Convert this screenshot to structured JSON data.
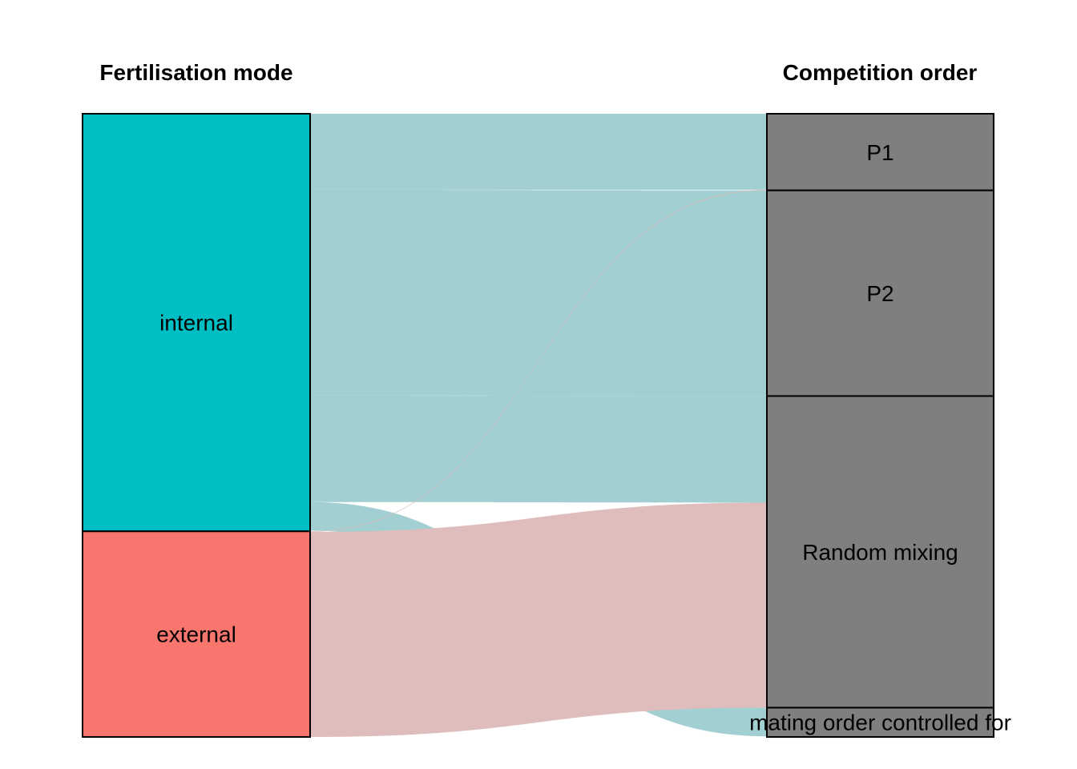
{
  "chart_data": {
    "type": "alluvial",
    "axes": [
      {
        "title": "Fertilisation mode",
        "strata": [
          {
            "label": "internal",
            "value": 67,
            "color": "#00BFC4"
          },
          {
            "label": "external",
            "value": 33,
            "color": "#F8766D"
          }
        ]
      },
      {
        "title": "Competition order",
        "strata": [
          {
            "label": "P1",
            "value": 12.3,
            "color": "#7F7F7F"
          },
          {
            "label": "P2",
            "value": 33,
            "color": "#7F7F7F"
          },
          {
            "label": "Random mixing",
            "value": 50,
            "color": "#7F7F7F"
          },
          {
            "label": "mating order controlled for",
            "value": 4.7,
            "color": "#7F7F7F"
          }
        ]
      }
    ],
    "flows": [
      {
        "from": "internal",
        "to": "P1",
        "value": 12.2,
        "color": "#A2CFD1"
      },
      {
        "from": "internal",
        "to": "P2",
        "value": 33,
        "color": "#A2CFD1"
      },
      {
        "from": "internal",
        "to": "Random mixing",
        "value": 17.1,
        "color": "#A2CFD1"
      },
      {
        "from": "internal",
        "to": "mating order controlled for",
        "value": 4.6,
        "color": "#A2CFD1"
      },
      {
        "from": "external",
        "to": "P1",
        "value": 0.1,
        "color": "#DEBDBC"
      },
      {
        "from": "external",
        "to": "Random mixing",
        "value": 32.9,
        "color": "#DEBDBC"
      }
    ],
    "flow_colors": {
      "internal": "#A2CFD1",
      "external": "#DEBDBC",
      "overlap": "#BDBDBD"
    }
  }
}
